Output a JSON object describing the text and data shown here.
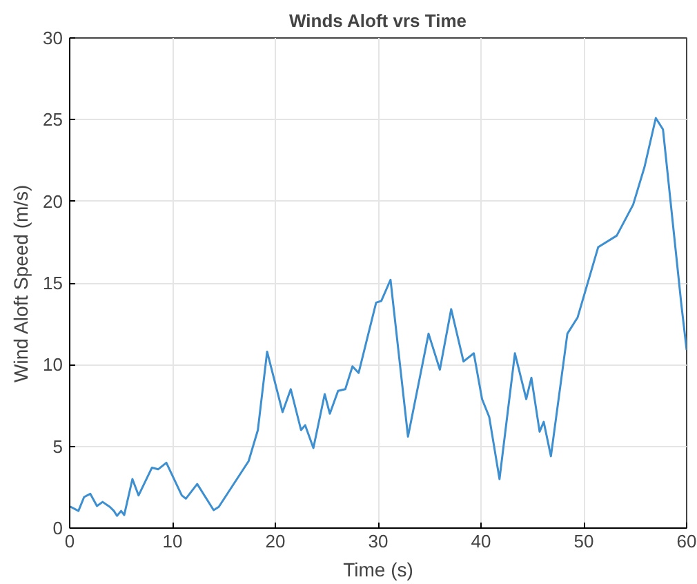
{
  "chart_data": {
    "type": "line",
    "title": "Winds Aloft vrs Time",
    "xlabel": "Time (s)",
    "ylabel": "Wind Aloft Speed (m/s)",
    "x": [
      0,
      0.1,
      0.85,
      1.4,
      2.0,
      2.65,
      3.2,
      3.9,
      4.3,
      4.6,
      5.0,
      5.3,
      6.1,
      6.7,
      8.0,
      8.6,
      9.4,
      10.9,
      11.3,
      12.4,
      14.0,
      14.5,
      17.4,
      18.3,
      19.2,
      20.7,
      21.5,
      22.5,
      22.9,
      23.7,
      24.8,
      25.3,
      26.1,
      26.8,
      27.5,
      28.1,
      29.8,
      30.3,
      31.2,
      32.9,
      34.9,
      36.0,
      37.1,
      38.3,
      39.3,
      40.1,
      40.8,
      41.8,
      43.3,
      44.4,
      44.9,
      45.7,
      46.1,
      46.8,
      48.4,
      49.4,
      51.4,
      53.2,
      54.8,
      55.9,
      57.0,
      57.7,
      58.8,
      59.5,
      60
    ],
    "series": [
      {
        "color": "#3d8fd0",
        "values": [
          1.3,
          1.3,
          1.05,
          1.9,
          2.1,
          1.35,
          1.6,
          1.3,
          1.05,
          0.75,
          1.05,
          0.8,
          3.0,
          2.0,
          3.7,
          3.6,
          4.0,
          2.0,
          1.8,
          2.7,
          1.1,
          1.3,
          4.1,
          6.0,
          10.8,
          7.1,
          8.5,
          6.0,
          6.3,
          4.9,
          8.2,
          7.0,
          8.4,
          8.5,
          9.9,
          9.5,
          13.8,
          13.9,
          15.2,
          5.6,
          11.9,
          9.7,
          13.4,
          10.2,
          10.7,
          7.9,
          6.8,
          3.0,
          10.7,
          7.9,
          9.2,
          5.9,
          6.5,
          4.4,
          11.9,
          12.9,
          17.2,
          17.9,
          19.8,
          22.1,
          25.1,
          24.4,
          17.8,
          13.6,
          10.9
        ]
      }
    ],
    "xlim": [
      0,
      60
    ],
    "ylim": [
      0,
      30
    ],
    "xticks": [
      0,
      10,
      20,
      30,
      40,
      50,
      60
    ],
    "yticks": [
      0,
      5,
      10,
      15,
      20,
      25,
      30
    ],
    "grid": true,
    "line_style": "solid"
  }
}
